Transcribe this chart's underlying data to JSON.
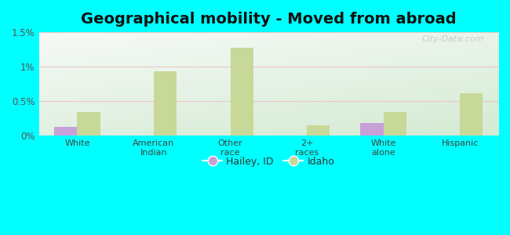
{
  "title": "Geographical mobility - Moved from abroad",
  "categories": [
    "White",
    "American\nIndian",
    "Other\nrace",
    "2+\nraces",
    "White\nalone",
    "Hispanic"
  ],
  "hailey_values": [
    0.13,
    0.0,
    0.0,
    0.0,
    0.19,
    0.0
  ],
  "idaho_values": [
    0.35,
    0.93,
    1.28,
    0.15,
    0.35,
    0.62
  ],
  "hailey_color": "#c8a0d8",
  "idaho_color": "#c8d898",
  "background_color": "#00ffff",
  "ylim": [
    0,
    1.5
  ],
  "yticks": [
    0,
    0.5,
    1.0,
    1.5
  ],
  "ytick_labels": [
    "0%",
    "0.5%",
    "1%",
    "1.5%"
  ],
  "bar_width": 0.3,
  "legend_hailey": "Hailey, ID",
  "legend_idaho": "Idaho",
  "title_fontsize": 14,
  "watermark": "City-Data.com"
}
